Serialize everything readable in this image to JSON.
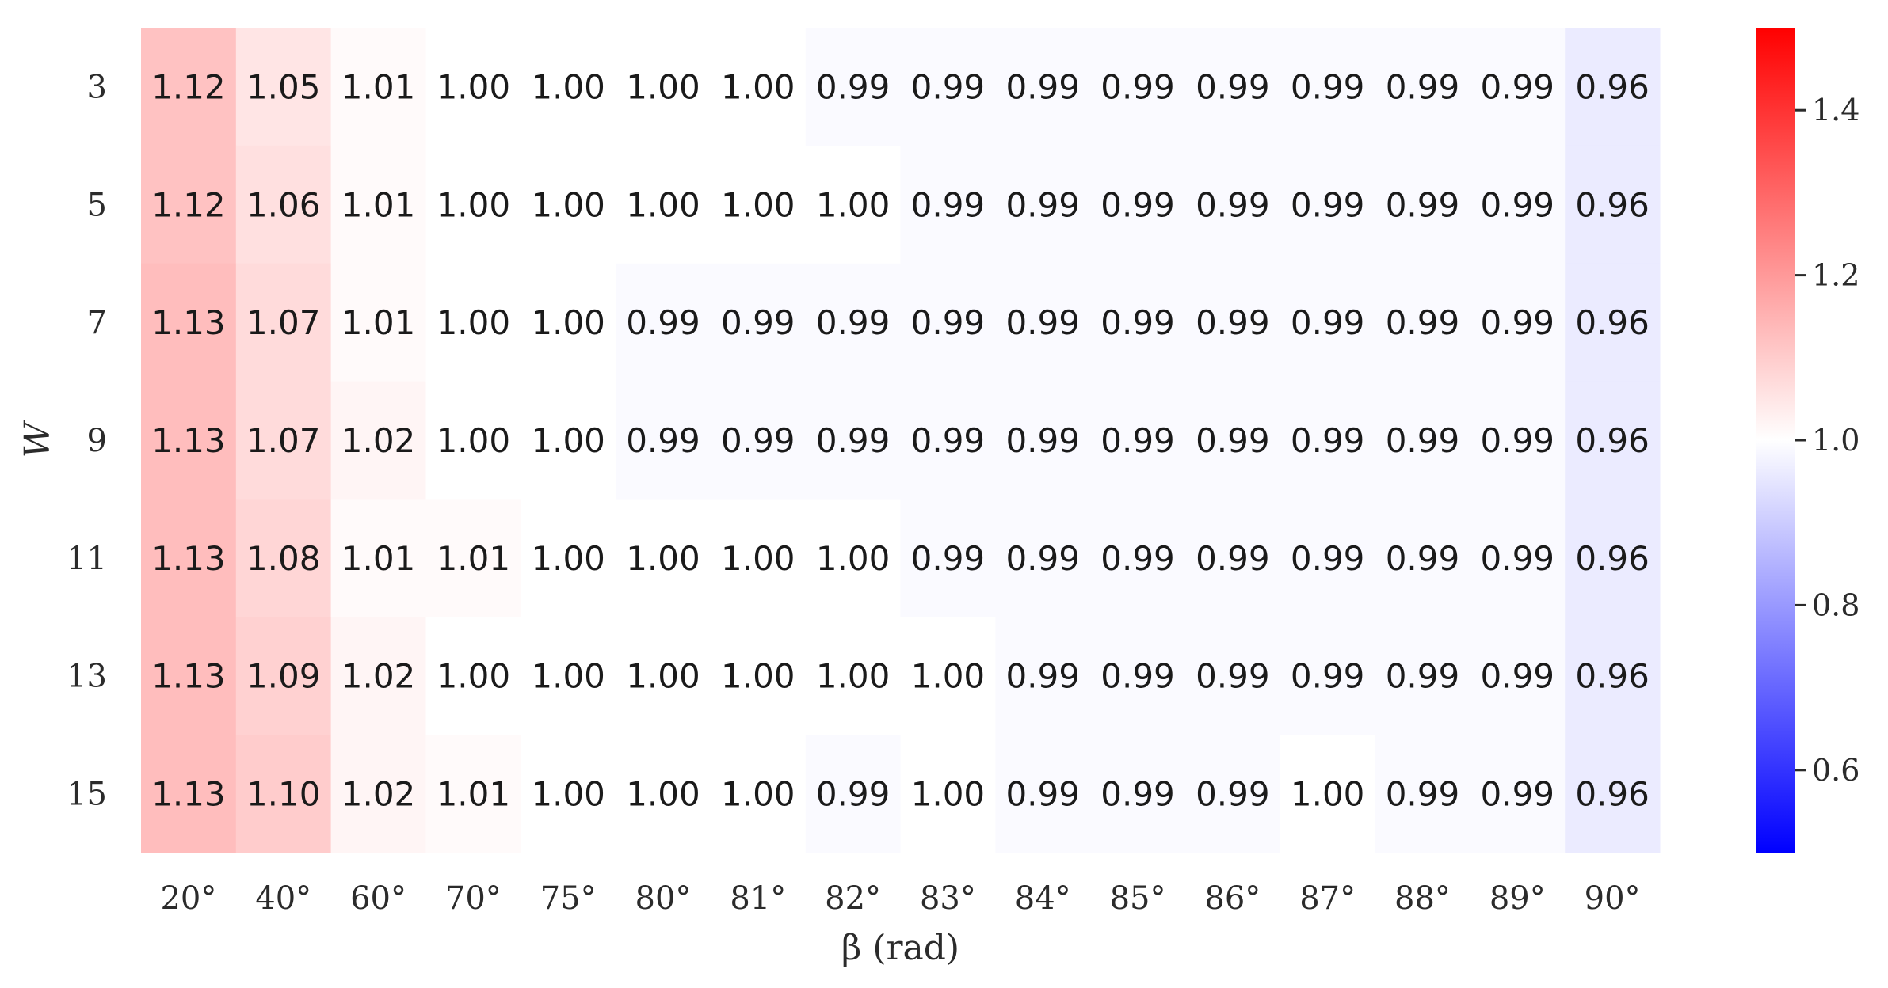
{
  "chart_data": {
    "type": "heatmap",
    "xlabel": "β (rad)",
    "ylabel": "W",
    "x_categories": [
      "20°",
      "40°",
      "60°",
      "70°",
      "75°",
      "80°",
      "81°",
      "82°",
      "83°",
      "84°",
      "85°",
      "86°",
      "87°",
      "88°",
      "89°",
      "90°"
    ],
    "y_categories": [
      "3",
      "5",
      "7",
      "9",
      "11",
      "13",
      "15"
    ],
    "values": [
      [
        1.12,
        1.05,
        1.01,
        1.0,
        1.0,
        1.0,
        1.0,
        0.99,
        0.99,
        0.99,
        0.99,
        0.99,
        0.99,
        0.99,
        0.99,
        0.96
      ],
      [
        1.12,
        1.06,
        1.01,
        1.0,
        1.0,
        1.0,
        1.0,
        1.0,
        0.99,
        0.99,
        0.99,
        0.99,
        0.99,
        0.99,
        0.99,
        0.96
      ],
      [
        1.13,
        1.07,
        1.01,
        1.0,
        1.0,
        0.99,
        0.99,
        0.99,
        0.99,
        0.99,
        0.99,
        0.99,
        0.99,
        0.99,
        0.99,
        0.96
      ],
      [
        1.13,
        1.07,
        1.02,
        1.0,
        1.0,
        0.99,
        0.99,
        0.99,
        0.99,
        0.99,
        0.99,
        0.99,
        0.99,
        0.99,
        0.99,
        0.96
      ],
      [
        1.13,
        1.08,
        1.01,
        1.01,
        1.0,
        1.0,
        1.0,
        1.0,
        0.99,
        0.99,
        0.99,
        0.99,
        0.99,
        0.99,
        0.99,
        0.96
      ],
      [
        1.13,
        1.09,
        1.02,
        1.0,
        1.0,
        1.0,
        1.0,
        1.0,
        1.0,
        0.99,
        0.99,
        0.99,
        0.99,
        0.99,
        0.99,
        0.96
      ],
      [
        1.13,
        1.1,
        1.02,
        1.01,
        1.0,
        1.0,
        1.0,
        0.99,
        1.0,
        0.99,
        0.99,
        0.99,
        1.0,
        0.99,
        0.99,
        0.96
      ]
    ],
    "colormap": "bwr",
    "vmin": 0.5,
    "vmax": 1.5,
    "colorbar_ticks": [
      "0.6",
      "0.8",
      "1.0",
      "1.2",
      "1.4"
    ],
    "colorbar_tick_values": [
      0.6,
      0.8,
      1.0,
      1.2,
      1.4
    ],
    "colors": {
      "low": "#0000ff",
      "mid": "#ffffff",
      "high": "#ff0000"
    }
  }
}
